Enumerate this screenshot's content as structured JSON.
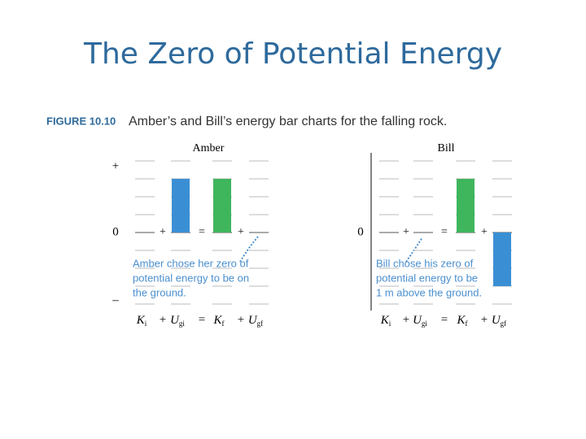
{
  "title": "The Zero of Potential Energy",
  "figure": {
    "label": "FIGURE 10.10",
    "caption": "Amber’s and Bill’s energy bar charts for the falling rock."
  },
  "panels": [
    {
      "name": "Amber",
      "axis_labels": [
        "+",
        "0",
        "–"
      ],
      "ylim": [
        -4,
        4
      ],
      "bars": [
        {
          "symbol": "K",
          "sub": "i",
          "value": 0,
          "color": "#3a8fd4"
        },
        {
          "symbol": "U",
          "sub": "gi",
          "value": 3,
          "color": "#3a8fd4"
        },
        {
          "symbol": "K",
          "sub": "f",
          "value": 3,
          "color": "#3fb55c"
        },
        {
          "symbol": "U",
          "sub": "gf",
          "value": 0,
          "color": "#3a8fd4"
        }
      ],
      "operators": [
        "+",
        "=",
        "+"
      ],
      "annotation": [
        "Amber chose her zero of",
        "potential energy to be on",
        "the ground."
      ]
    },
    {
      "name": "Bill",
      "axis_labels": [
        "0"
      ],
      "ylim": [
        -4,
        4
      ],
      "bars": [
        {
          "symbol": "K",
          "sub": "i",
          "value": 0,
          "color": "#3a8fd4"
        },
        {
          "symbol": "U",
          "sub": "gi",
          "value": 0,
          "color": "#3a8fd4"
        },
        {
          "symbol": "K",
          "sub": "f",
          "value": 3,
          "color": "#3fb55c"
        },
        {
          "symbol": "U",
          "sub": "gf",
          "value": -3,
          "color": "#3a8fd4"
        }
      ],
      "operators": [
        "+",
        "=",
        "+"
      ],
      "annotation": [
        "Bill chose his zero of",
        "potential energy to be",
        "1 m above the ground."
      ]
    }
  ]
}
